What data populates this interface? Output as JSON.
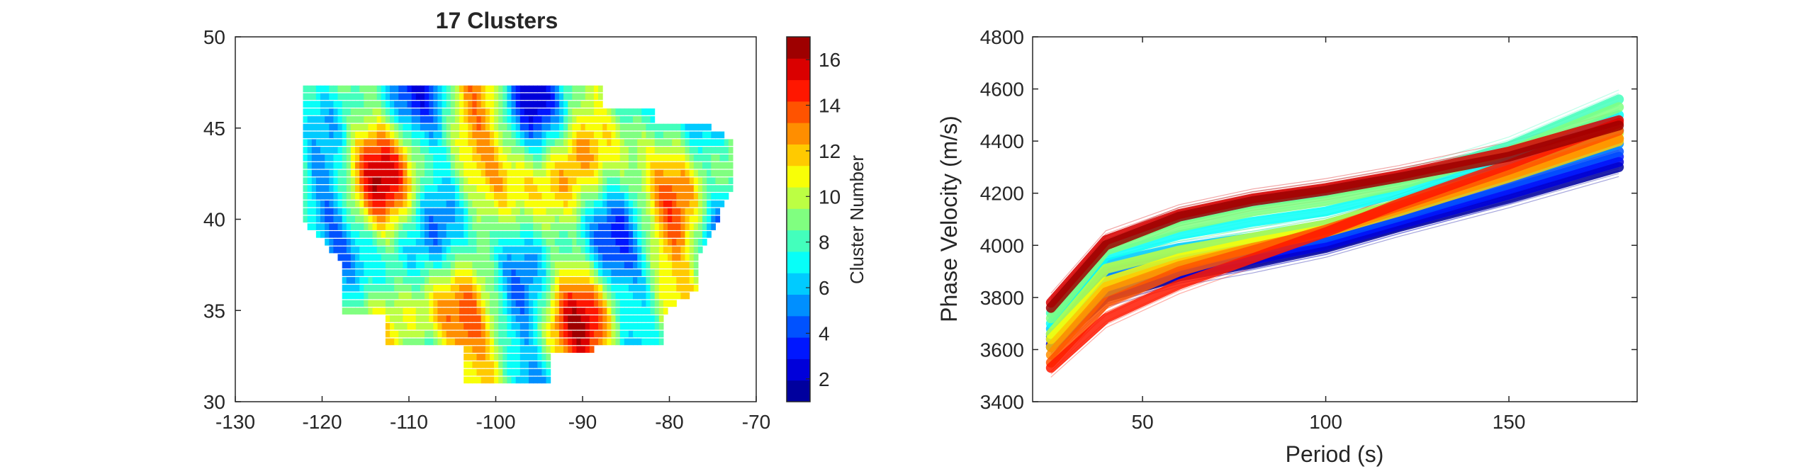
{
  "chart_data": [
    {
      "type": "heatmap",
      "title": "17 Clusters",
      "xlabel": "",
      "ylabel": "",
      "xlim": [
        -130,
        -70
      ],
      "ylim": [
        30,
        50
      ],
      "xticks": [
        -130,
        -120,
        -110,
        -100,
        -90,
        -80,
        -70
      ],
      "yticks": [
        30,
        35,
        40,
        45,
        50
      ],
      "grid": false,
      "colorbar": {
        "label": "Cluster Number",
        "range": [
          1,
          17
        ],
        "ticks": [
          2,
          4,
          6,
          8,
          10,
          12,
          14,
          16
        ],
        "colormap": "jet",
        "levels": 17
      },
      "clusters": 17,
      "lon_range": [
        -122,
        -73
      ],
      "lat_range": [
        31,
        47
      ]
    },
    {
      "type": "line",
      "title": "",
      "xlabel": "Period (s)",
      "ylabel": "Phase Velocity (m/s)",
      "xlim": [
        20,
        185
      ],
      "ylim": [
        3400,
        4800
      ],
      "xticks": [
        50,
        100,
        150
      ],
      "yticks": [
        3400,
        3600,
        3800,
        4000,
        4200,
        4400,
        4600,
        4800
      ],
      "grid": false,
      "legend": "none",
      "x": [
        25,
        40,
        60,
        80,
        100,
        120,
        150,
        180
      ],
      "series": [
        {
          "cluster": 1,
          "values": [
            3610,
            3800,
            3880,
            3930,
            3990,
            4070,
            4180,
            4300
          ]
        },
        {
          "cluster": 2,
          "values": [
            3620,
            3810,
            3890,
            3945,
            4000,
            4080,
            4195,
            4320
          ]
        },
        {
          "cluster": 3,
          "values": [
            3640,
            3840,
            3910,
            3960,
            4015,
            4095,
            4215,
            4340
          ]
        },
        {
          "cluster": 4,
          "values": [
            3650,
            3870,
            3930,
            3980,
            4030,
            4110,
            4235,
            4360
          ]
        },
        {
          "cluster": 5,
          "values": [
            3660,
            3900,
            3960,
            4000,
            4050,
            4130,
            4260,
            4390
          ]
        },
        {
          "cluster": 6,
          "values": [
            3680,
            3930,
            3990,
            4030,
            4080,
            4160,
            4300,
            4440
          ]
        },
        {
          "cluster": 7,
          "values": [
            3700,
            3960,
            4040,
            4090,
            4130,
            4200,
            4340,
            4500
          ]
        },
        {
          "cluster": 8,
          "values": [
            3740,
            4000,
            4100,
            4160,
            4200,
            4250,
            4380,
            4560
          ]
        },
        {
          "cluster": 9,
          "values": [
            3720,
            3980,
            4070,
            4130,
            4170,
            4230,
            4360,
            4530
          ]
        },
        {
          "cluster": 10,
          "values": [
            3660,
            3910,
            3980,
            4030,
            4080,
            4160,
            4290,
            4430
          ]
        },
        {
          "cluster": 11,
          "values": [
            3640,
            3860,
            3950,
            4010,
            4060,
            4140,
            4270,
            4410
          ]
        },
        {
          "cluster": 12,
          "values": [
            3610,
            3840,
            3930,
            3990,
            4050,
            4130,
            4260,
            4400
          ]
        },
        {
          "cluster": 13,
          "values": [
            3580,
            3820,
            3920,
            3990,
            4050,
            4140,
            4270,
            4410
          ]
        },
        {
          "cluster": 14,
          "values": [
            3550,
            3780,
            3900,
            3980,
            4060,
            4150,
            4290,
            4440
          ]
        },
        {
          "cluster": 15,
          "values": [
            3530,
            3720,
            3850,
            3950,
            4050,
            4160,
            4310,
            4470
          ]
        },
        {
          "cluster": 16,
          "values": [
            3780,
            4020,
            4120,
            4180,
            4220,
            4270,
            4360,
            4480
          ]
        },
        {
          "cluster": 17,
          "values": [
            3760,
            4000,
            4110,
            4170,
            4210,
            4260,
            4340,
            4460
          ]
        }
      ]
    }
  ]
}
